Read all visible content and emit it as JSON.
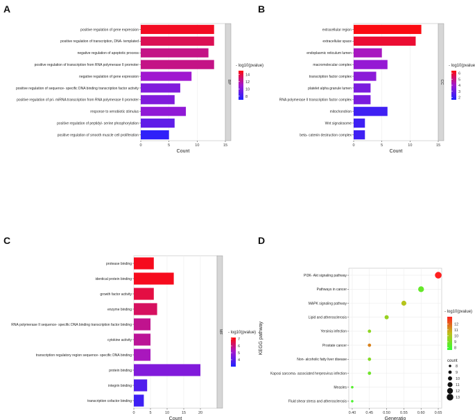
{
  "legend_title": "- log10(pvalue)",
  "chart_data": [
    {
      "id": "A",
      "panel_label": "A",
      "type": "bar",
      "orientation": "horizontal",
      "facet_label": "BP",
      "categories": [
        "positive regulation of gene expression",
        "positive regulation of transcription, DNA- templated",
        "negative regulation of apoptotic process",
        "positive regulation of transcription from RNA polymerase II promoter",
        "negative regulation of gene expression",
        "positive regulation of sequence- specific DNA binding transcription factor activity",
        "positive regulation of pri- miRNA transcription from RNA polymerase II promoter",
        "response to xenobiotic stimulus",
        "positive regulation of peptidyl- serine phosphorylation",
        "positive regulation of smooth muscle cell proliferation"
      ],
      "values": [
        13,
        13,
        12,
        13,
        9,
        7,
        6,
        8,
        6,
        5
      ],
      "color_values": [
        14.5,
        13.5,
        12.5,
        12.5,
        11,
        10,
        10,
        10.5,
        9,
        7.5
      ],
      "xlabel": "Count",
      "xlim": [
        0,
        15
      ],
      "xticks": [
        0,
        5,
        10,
        15
      ],
      "legend": {
        "min": 7,
        "max": 15,
        "ticks": [
          14,
          12,
          10,
          8
        ]
      }
    },
    {
      "id": "B",
      "panel_label": "B",
      "type": "bar",
      "orientation": "horizontal",
      "facet_label": "CC",
      "categories": [
        "extracellular region",
        "extracellular space",
        "endoplasmic reticulum lumen",
        "macromolecular complex",
        "transcription factor complex",
        "platelet alpha granule lumen",
        "RNA polymerase II transcription factor complex",
        "mitochondrion",
        "Wnt signalosome",
        "beta- catenin destruction complex"
      ],
      "values": [
        12,
        11,
        5,
        6,
        4,
        3,
        3,
        6,
        2,
        2
      ],
      "color_values": [
        6.3,
        5.9,
        4.2,
        3.8,
        3.6,
        3.3,
        3.3,
        2.2,
        2.2,
        2.2
      ],
      "xlabel": "Count",
      "xlim": [
        0,
        15
      ],
      "xticks": [
        0,
        5,
        10,
        15
      ],
      "legend": {
        "min": 1.6,
        "max": 6.4,
        "ticks": [
          6,
          5,
          4,
          3,
          2
        ]
      }
    },
    {
      "id": "C",
      "panel_label": "C",
      "type": "bar",
      "orientation": "horizontal",
      "facet_label": "MF",
      "categories": [
        "protease binding",
        "identical protein binding",
        "growth factor activity",
        "enzyme binding",
        "RNA polymerase II sequence- specific DNA binding transcription factor binding",
        "cytokine activity",
        "transcription regulatory region sequence- specific DNA binding",
        "protein binding",
        "integrin binding",
        "transcription cofactor binding"
      ],
      "values": [
        6,
        12,
        6,
        7,
        5,
        5,
        5,
        20,
        4,
        3
      ],
      "color_values": [
        7,
        7,
        6.6,
        6.3,
        5.8,
        5.7,
        5.3,
        4.6,
        3.8,
        3.5
      ],
      "xlabel": "Count",
      "xlim": [
        0,
        25
      ],
      "xticks": [
        0,
        5,
        10,
        15,
        20
      ],
      "legend": {
        "min": 3,
        "max": 7.2,
        "ticks": [
          7,
          6,
          5,
          4
        ]
      }
    },
    {
      "id": "D",
      "panel_label": "D",
      "type": "scatter",
      "ylabel": "KEGG pathway",
      "xlabel": "Generatio",
      "categories": [
        "PI3K- Akt signaling pathway",
        "Pathways in cancer",
        "MAPK signaling pathway",
        "Lipid and atherosclerosis",
        "Yersinia infection",
        "Prostate cancer",
        "Non- alcoholic fatty liver disease",
        "Kaposi sarcoma- associated herpesvirus infection",
        "Measles",
        "Fluid shear stress and atherosclerosis"
      ],
      "x": [
        0.65,
        0.6,
        0.55,
        0.5,
        0.45,
        0.45,
        0.45,
        0.45,
        0.4,
        0.4
      ],
      "color_values": [
        13.5,
        8.6,
        10.2,
        9.6,
        9.4,
        11.5,
        9.2,
        8.8,
        8.3,
        8.1
      ],
      "count": [
        13,
        12,
        11,
        10,
        9,
        9,
        9,
        9,
        8,
        8
      ],
      "xlim": [
        0.39,
        0.66
      ],
      "xticks": [
        0.4,
        0.45,
        0.5,
        0.55,
        0.6,
        0.65
      ],
      "legend": {
        "min": 7.6,
        "max": 13.2,
        "ticks": [
          12,
          11,
          10,
          9,
          8
        ]
      },
      "size_legend_title": "count",
      "size_legend": [
        8,
        9,
        10,
        11,
        12,
        13
      ]
    }
  ]
}
